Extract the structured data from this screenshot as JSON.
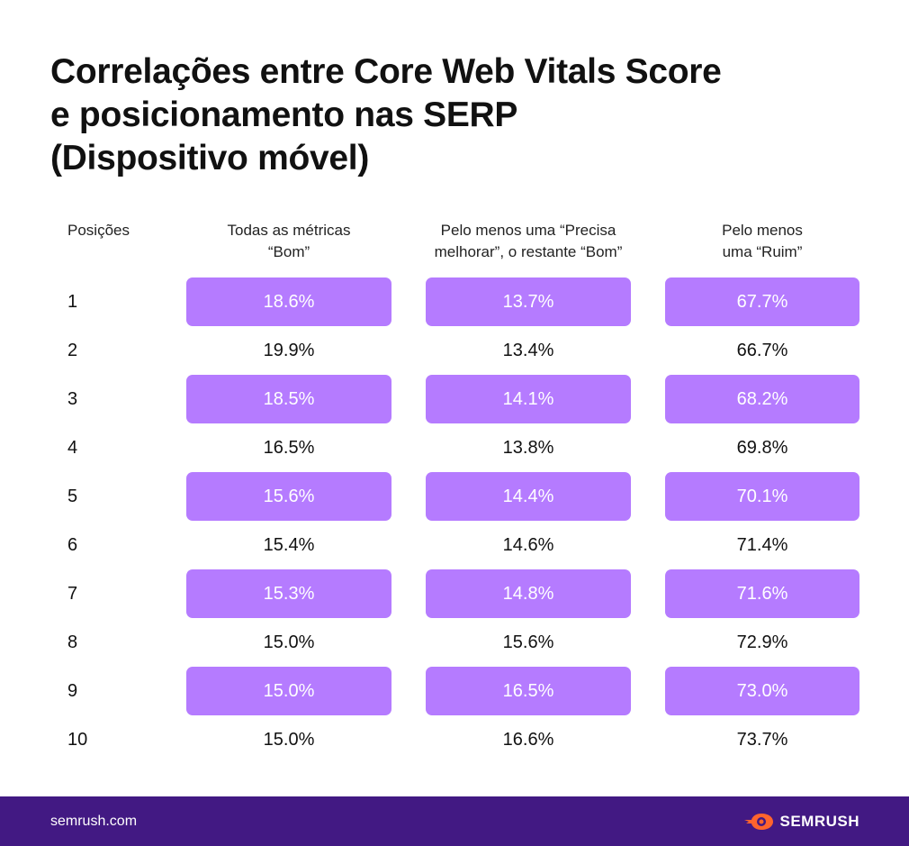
{
  "title_lines": [
    "Correlações entre Core Web Vitals Score",
    "e posicionamento nas SERP",
    "(Dispositivo móvel)"
  ],
  "headers": {
    "positions": "Posições",
    "col1": [
      "Todas as métricas",
      "“Bom”"
    ],
    "col2": [
      "Pelo menos uma “Precisa",
      "melhorar”, o restante “Bom”"
    ],
    "col3": [
      "Pelo menos",
      "uma “Ruim”"
    ]
  },
  "chart_data": {
    "type": "table",
    "columns": [
      "Posições",
      "Todas as métricas “Bom”",
      "Pelo menos uma “Precisa melhorar”, o restante “Bom”",
      "Pelo menos uma “Ruim”"
    ],
    "rows": [
      {
        "position": "1",
        "c1": "18.6%",
        "c2": "13.7%",
        "c3": "67.7%"
      },
      {
        "position": "2",
        "c1": "19.9%",
        "c2": "13.4%",
        "c3": "66.7%"
      },
      {
        "position": "3",
        "c1": "18.5%",
        "c2": "14.1%",
        "c3": "68.2%"
      },
      {
        "position": "4",
        "c1": "16.5%",
        "c2": "13.8%",
        "c3": "69.8%"
      },
      {
        "position": "5",
        "c1": "15.6%",
        "c2": "14.4%",
        "c3": "70.1%"
      },
      {
        "position": "6",
        "c1": "15.4%",
        "c2": "14.6%",
        "c3": "71.4%"
      },
      {
        "position": "7",
        "c1": "15.3%",
        "c2": "14.8%",
        "c3": "71.6%"
      },
      {
        "position": "8",
        "c1": "15.0%",
        "c2": "15.6%",
        "c3": "72.9%"
      },
      {
        "position": "9",
        "c1": "15.0%",
        "c2": "16.5%",
        "c3": "73.0%"
      },
      {
        "position": "10",
        "c1": "15.0%",
        "c2": "16.6%",
        "c3": "73.7%"
      }
    ]
  },
  "colors": {
    "highlight": "#b57bff",
    "footer": "#421983",
    "logo_accent": "#ff642d"
  },
  "footer": {
    "site": "semrush.com",
    "brand": "SEMRUSH",
    "logo_icon": "semrush-fire-icon"
  }
}
